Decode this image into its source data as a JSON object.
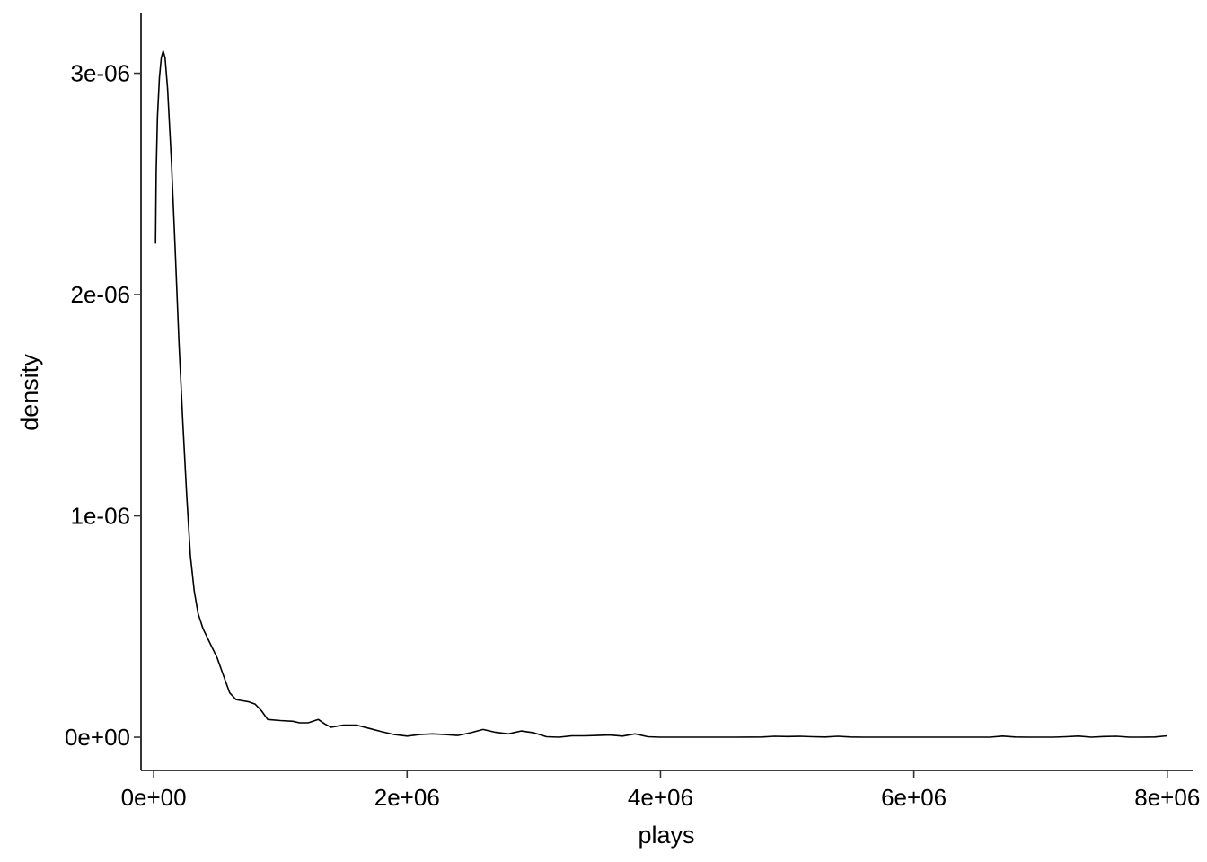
{
  "chart_data": {
    "type": "line",
    "title": "",
    "xlabel": "plays",
    "ylabel": "density",
    "xlim": [
      -100000.0,
      8200000.0
    ],
    "ylim": [
      -1.5e-07,
      3.27e-06
    ],
    "grid": false,
    "legend": "none",
    "line_color": "#000000",
    "x_ticks": [
      {
        "value": 0,
        "label": "0e+00"
      },
      {
        "value": 2000000,
        "label": "2e+06"
      },
      {
        "value": 4000000,
        "label": "4e+06"
      },
      {
        "value": 6000000,
        "label": "6e+06"
      },
      {
        "value": 8000000,
        "label": "8e+06"
      }
    ],
    "y_ticks": [
      {
        "value": 0,
        "label": "0e+00"
      },
      {
        "value": 1e-06,
        "label": "1e-06"
      },
      {
        "value": 2e-06,
        "label": "2e-06"
      },
      {
        "value": 3e-06,
        "label": "3e-06"
      }
    ],
    "series": [
      {
        "points": [
          [
            15000,
            2.23e-06
          ],
          [
            20000,
            2.55e-06
          ],
          [
            30000,
            2.8e-06
          ],
          [
            45000,
            2.98e-06
          ],
          [
            60000,
            3.07e-06
          ],
          [
            75000,
            3.1e-06
          ],
          [
            90000,
            3.07e-06
          ],
          [
            110000,
            2.93e-06
          ],
          [
            140000,
            2.6e-06
          ],
          [
            170000,
            2.2e-06
          ],
          [
            200000,
            1.78e-06
          ],
          [
            230000,
            1.42e-06
          ],
          [
            260000,
            1.1e-06
          ],
          [
            290000,
            8.2e-07
          ],
          [
            320000,
            6.6e-07
          ],
          [
            350000,
            5.6e-07
          ],
          [
            390000,
            4.9e-07
          ],
          [
            440000,
            4.3e-07
          ],
          [
            500000,
            3.6e-07
          ],
          [
            550000,
            2.8e-07
          ],
          [
            600000,
            2e-07
          ],
          [
            650000,
            1.7e-07
          ],
          [
            700000,
            1.65e-07
          ],
          [
            750000,
            1.6e-07
          ],
          [
            800000,
            1.5e-07
          ],
          [
            850000,
            1.2e-07
          ],
          [
            900000,
            8e-08
          ],
          [
            1000000,
            7.5e-08
          ],
          [
            1100000,
            7.2e-08
          ],
          [
            1150000,
            6.5e-08
          ],
          [
            1220000,
            6.5e-08
          ],
          [
            1300000,
            8e-08
          ],
          [
            1350000,
            6e-08
          ],
          [
            1400000,
            4.5e-08
          ],
          [
            1500000,
            5.5e-08
          ],
          [
            1600000,
            5.5e-08
          ],
          [
            1700000,
            4e-08
          ],
          [
            1800000,
            2.5e-08
          ],
          [
            1900000,
            1.2e-08
          ],
          [
            2000000,
            5e-09
          ],
          [
            2100000,
            1.2e-08
          ],
          [
            2200000,
            1.5e-08
          ],
          [
            2300000,
            1.2e-08
          ],
          [
            2400000,
            8e-09
          ],
          [
            2500000,
            2e-08
          ],
          [
            2600000,
            3.5e-08
          ],
          [
            2700000,
            2.2e-08
          ],
          [
            2800000,
            1.5e-08
          ],
          [
            2900000,
            2.8e-08
          ],
          [
            3000000,
            2e-08
          ],
          [
            3100000,
            2e-09
          ],
          [
            3200000,
            0.0
          ],
          [
            3300000,
            6e-09
          ],
          [
            3400000,
            6e-09
          ],
          [
            3500000,
            8e-09
          ],
          [
            3600000,
            1e-08
          ],
          [
            3700000,
            5e-09
          ],
          [
            3800000,
            1.5e-08
          ],
          [
            3900000,
            2e-09
          ],
          [
            4000000,
            0.0
          ],
          [
            4200000,
            0.0
          ],
          [
            4400000,
            0.0
          ],
          [
            4600000,
            0.0
          ],
          [
            4800000,
            1e-09
          ],
          [
            4900000,
            4e-09
          ],
          [
            5000000,
            3e-09
          ],
          [
            5100000,
            4e-09
          ],
          [
            5200000,
            2e-09
          ],
          [
            5300000,
            1e-09
          ],
          [
            5400000,
            4e-09
          ],
          [
            5500000,
            1e-09
          ],
          [
            5600000,
            0.0
          ],
          [
            5800000,
            0.0
          ],
          [
            6000000,
            0.0
          ],
          [
            6200000,
            0.0
          ],
          [
            6400000,
            0.0
          ],
          [
            6600000,
            0.0
          ],
          [
            6700000,
            5e-09
          ],
          [
            6800000,
            1e-09
          ],
          [
            6900000,
            0.0
          ],
          [
            7100000,
            0.0
          ],
          [
            7200000,
            2e-09
          ],
          [
            7300000,
            5e-09
          ],
          [
            7400000,
            0.0
          ],
          [
            7500000,
            3e-09
          ],
          [
            7600000,
            4e-09
          ],
          [
            7700000,
            0.0
          ],
          [
            7800000,
            0.0
          ],
          [
            7900000,
            1e-09
          ],
          [
            8000000,
            6e-09
          ]
        ]
      }
    ]
  }
}
